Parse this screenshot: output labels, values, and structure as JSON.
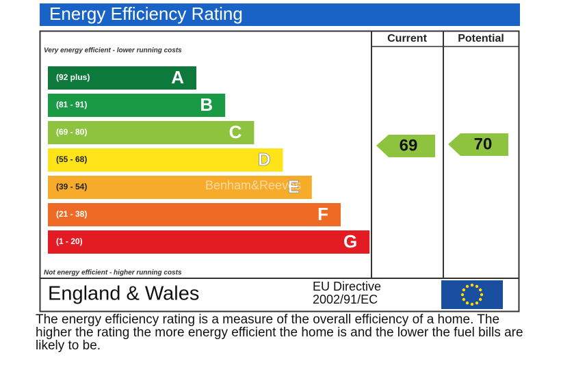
{
  "header": {
    "title": "Energy Efficiency Rating"
  },
  "columns": {
    "current": "Current",
    "potential": "Potential"
  },
  "top_note": "Very energy efficient - lower running costs",
  "bottom_note": "Not energy efficient - higher running costs",
  "bands": [
    {
      "range": "(92 plus)",
      "letter": "A",
      "color": "#0d7a3c"
    },
    {
      "range": "(81 - 91)",
      "letter": "B",
      "color": "#1b9a45"
    },
    {
      "range": "(69 - 80)",
      "letter": "C",
      "color": "#8dc33f"
    },
    {
      "range": "(55 - 68)",
      "letter": "D",
      "color": "#ffe41a"
    },
    {
      "range": "(39 - 54)",
      "letter": "E",
      "color": "#f6ac2a"
    },
    {
      "range": "(21 - 38)",
      "letter": "F",
      "color": "#ef6a24"
    },
    {
      "range": "(1 - 20)",
      "letter": "G",
      "color": "#e31c24"
    }
  ],
  "current_rating": 69,
  "potential_rating": 70,
  "footer": {
    "region": "England & Wales",
    "directive_line1": "EU Directive",
    "directive_line2": "2002/91/EC"
  },
  "watermark": "Benham&Reeves",
  "description": "The energy efficiency rating is a measure of the overall efficiency of a home. The higher the rating the more energy efficient the home is and the lower the fuel bills are likely to be."
}
